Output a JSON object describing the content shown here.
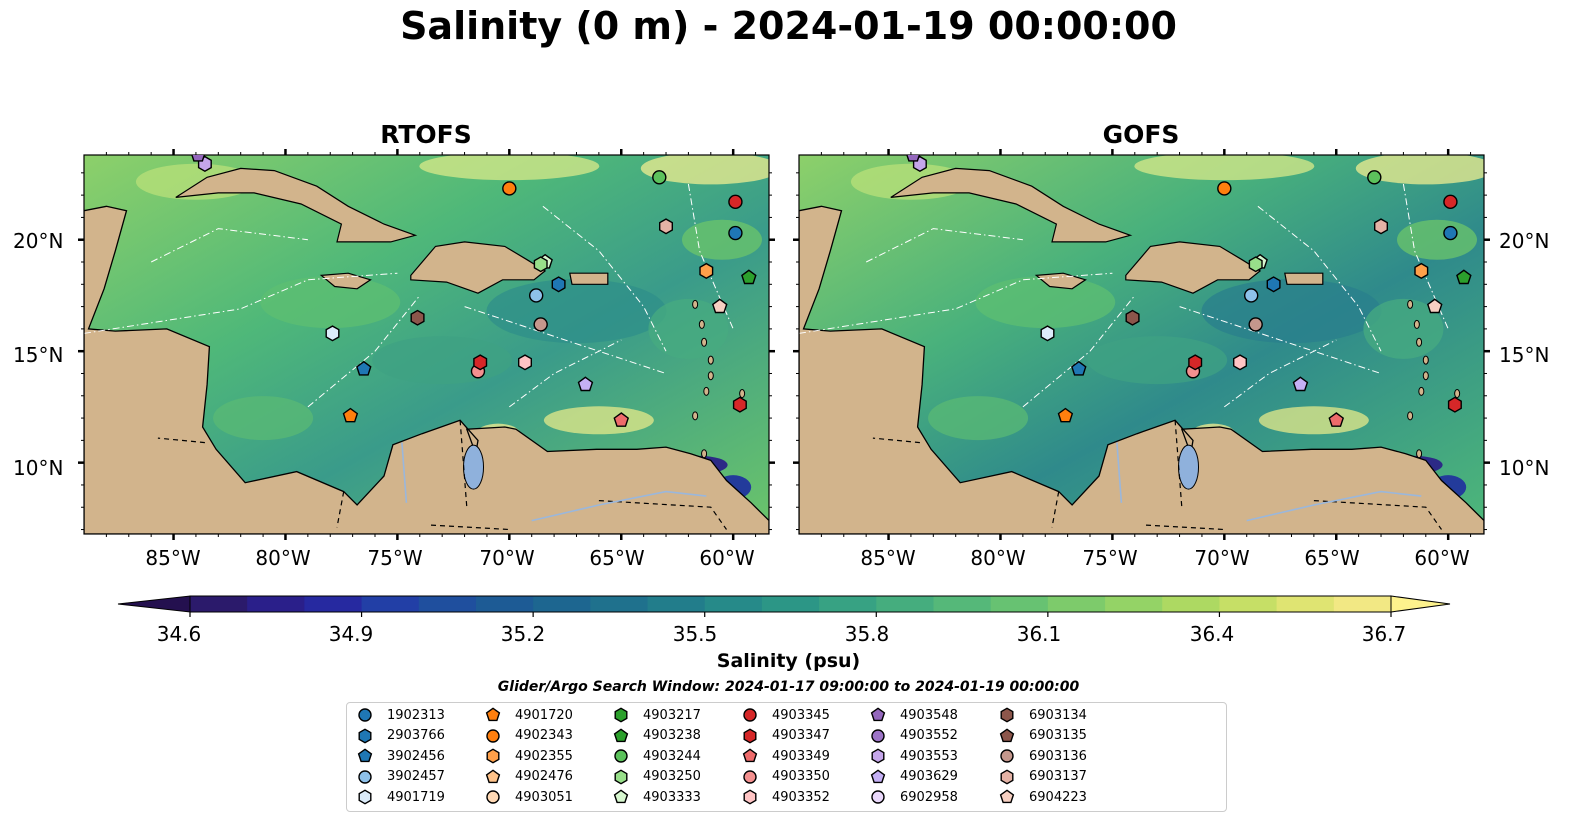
{
  "title": "Salinity (0 m) - 2024-01-19 00:00:00",
  "panels": [
    {
      "title": "RTOFS"
    },
    {
      "title": "GOFS"
    }
  ],
  "lat_ticks": [
    "20°N",
    "15°N",
    "10°N"
  ],
  "lon_ticks": [
    "85°W",
    "80°W",
    "75°W",
    "70°W",
    "65°W",
    "60°W"
  ],
  "colorbar": {
    "ticks": [
      "34.6",
      "34.9",
      "35.2",
      "35.5",
      "35.8",
      "36.1",
      "36.4",
      "36.7"
    ],
    "label": "Salinity (psu)",
    "min": 34.6,
    "max": 36.7
  },
  "search_window": "Glider/Argo Search Window: 2024-01-17 09:00:00 to 2024-01-19 00:00:00",
  "legend": [
    {
      "id": "1902313",
      "color": "#1f77b4",
      "shape": "circle"
    },
    {
      "id": "2903766",
      "color": "#1f77b4",
      "shape": "hexagon"
    },
    {
      "id": "3902456",
      "color": "#1f77b4",
      "shape": "pentagon"
    },
    {
      "id": "3902457",
      "color": "#8ec1ea",
      "shape": "circle"
    },
    {
      "id": "4901719",
      "color": "#dcecfa",
      "shape": "hexagon"
    },
    {
      "id": "4901720",
      "color": "#ff7f0e",
      "shape": "pentagon"
    },
    {
      "id": "4902343",
      "color": "#ff7f0e",
      "shape": "circle"
    },
    {
      "id": "4902355",
      "color": "#ffa04a",
      "shape": "hexagon"
    },
    {
      "id": "4902476",
      "color": "#ffc38a",
      "shape": "pentagon"
    },
    {
      "id": "4903051",
      "color": "#ffd9b5",
      "shape": "circle"
    },
    {
      "id": "4903217",
      "color": "#2ca02c",
      "shape": "hexagon"
    },
    {
      "id": "4903238",
      "color": "#2ca02c",
      "shape": "pentagon"
    },
    {
      "id": "4903244",
      "color": "#5cc25c",
      "shape": "circle"
    },
    {
      "id": "4903250",
      "color": "#98df8a",
      "shape": "hexagon"
    },
    {
      "id": "4903333",
      "color": "#d7f7cf",
      "shape": "pentagon"
    },
    {
      "id": "4903345",
      "color": "#d62728",
      "shape": "circle"
    },
    {
      "id": "4903347",
      "color": "#d62728",
      "shape": "hexagon"
    },
    {
      "id": "4903349",
      "color": "#ee6b6b",
      "shape": "pentagon"
    },
    {
      "id": "4903350",
      "color": "#f3908f",
      "shape": "circle"
    },
    {
      "id": "4903352",
      "color": "#ffc4c4",
      "shape": "hexagon"
    },
    {
      "id": "4903548",
      "color": "#9467bd",
      "shape": "pentagon"
    },
    {
      "id": "4903552",
      "color": "#9d74c7",
      "shape": "circle"
    },
    {
      "id": "4903553",
      "color": "#c5a6ea",
      "shape": "hexagon"
    },
    {
      "id": "4903629",
      "color": "#c5b0f5",
      "shape": "pentagon"
    },
    {
      "id": "6902958",
      "color": "#ead8fb",
      "shape": "circle"
    },
    {
      "id": "6903134",
      "color": "#8c564b",
      "shape": "hexagon"
    },
    {
      "id": "6903135",
      "color": "#8c564b",
      "shape": "pentagon"
    },
    {
      "id": "6903136",
      "color": "#c4978c",
      "shape": "circle"
    },
    {
      "id": "6903137",
      "color": "#e5b3a6",
      "shape": "hexagon"
    },
    {
      "id": "6904223",
      "color": "#f7d0c2",
      "shape": "pentagon"
    }
  ],
  "markers": [
    {
      "id": "4901720",
      "lon": -77.1,
      "lat": 12.1
    },
    {
      "id": "3902456",
      "lon": -76.5,
      "lat": 14.2
    },
    {
      "id": "4901719",
      "lon": -77.9,
      "lat": 15.8
    },
    {
      "id": "6903134",
      "lon": -74.1,
      "lat": 16.5
    },
    {
      "id": "4903350",
      "lon": -71.4,
      "lat": 14.1
    },
    {
      "id": "4903347",
      "lon": -71.3,
      "lat": 14.5
    },
    {
      "id": "4903352",
      "lon": -69.3,
      "lat": 14.5
    },
    {
      "id": "6903136",
      "lon": -68.6,
      "lat": 16.2
    },
    {
      "id": "3902457",
      "lon": -68.8,
      "lat": 17.5
    },
    {
      "id": "2903766",
      "lon": -67.8,
      "lat": 18.0
    },
    {
      "id": "4903333",
      "lon": -68.4,
      "lat": 19.0
    },
    {
      "id": "4903250",
      "lon": -68.6,
      "lat": 18.9
    },
    {
      "id": "4903629",
      "lon": -66.6,
      "lat": 13.5
    },
    {
      "id": "4903349",
      "lon": -65.0,
      "lat": 11.9
    },
    {
      "id": "4902343",
      "lon": -70.0,
      "lat": 22.3
    },
    {
      "id": "4903244",
      "lon": -63.3,
      "lat": 22.8
    },
    {
      "id": "6903137",
      "lon": -63.0,
      "lat": 20.6
    },
    {
      "id": "4902355",
      "lon": -61.2,
      "lat": 18.6
    },
    {
      "id": "6904223",
      "lon": -60.6,
      "lat": 17.0
    },
    {
      "id": "4903345",
      "lon": -59.9,
      "lat": 21.7
    },
    {
      "id": "1902313",
      "lon": -59.9,
      "lat": 20.3
    },
    {
      "id": "4903238",
      "lon": -59.3,
      "lat": 18.3
    },
    {
      "id": "4903347",
      "lon": -59.7,
      "lat": 12.6
    },
    {
      "id": "4903553",
      "lon": -83.6,
      "lat": 23.4
    },
    {
      "id": "4903548",
      "lon": -83.9,
      "lat": 23.8
    }
  ]
}
